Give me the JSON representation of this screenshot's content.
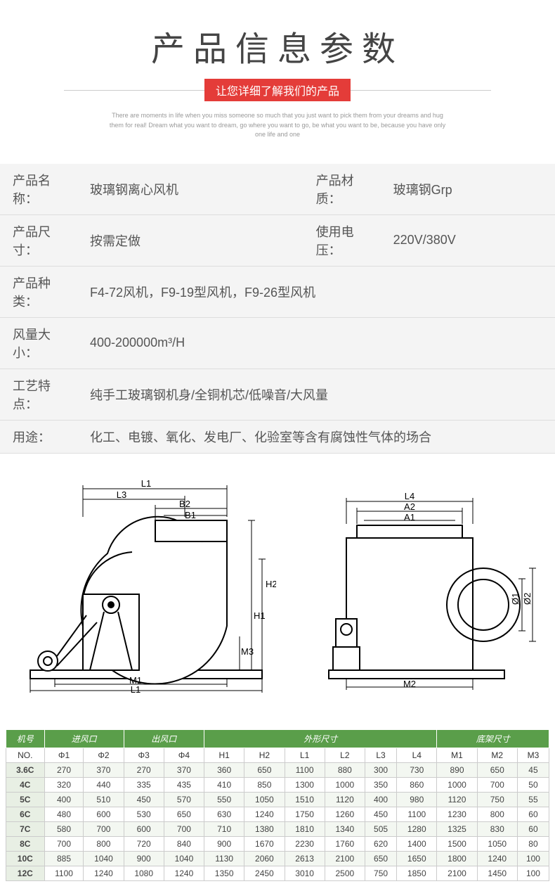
{
  "header": {
    "title": "产品信息参数",
    "subtitle": "让您详细了解我们的产品",
    "english1": "There are moments in life when you miss someone so much that you just want to pick them from your dreams and hug",
    "english2": "them for real! Dream what you want to dream, go where you want to go, be what you want to be, because you have only",
    "english3": "one life and one"
  },
  "info": {
    "rows": [
      {
        "cells": [
          {
            "label": "产品名称：",
            "value": "玻璃钢离心风机"
          },
          {
            "label": "产品材质：",
            "value": "玻璃钢Grp"
          }
        ]
      },
      {
        "cells": [
          {
            "label": "产品尺寸：",
            "value": "按需定做"
          },
          {
            "label": "使用电压：",
            "value": "220V/380V"
          }
        ]
      },
      {
        "cells": [
          {
            "label": "产品种类：",
            "value": "F4-72风机，F9-19型风机，F9-26型风机"
          }
        ]
      },
      {
        "cells": [
          {
            "label": "风量大小：",
            "value": "400-200000m³/H"
          }
        ]
      },
      {
        "cells": [
          {
            "label": "工艺特点：",
            "value": "纯手工玻璃钢机身/全铜机芯/低噪音/大风量"
          }
        ]
      },
      {
        "cells": [
          {
            "label": "用途：",
            "value": "化工、电镀、氧化、发电厂、化验室等含有腐蚀性气体的场合"
          }
        ]
      }
    ]
  },
  "diagram": {
    "stroke": "#000000",
    "fill": "#ffffff",
    "labels_left": [
      "L1",
      "L3",
      "B2",
      "B1",
      "H2",
      "H1",
      "M3",
      "M1",
      "L1"
    ],
    "labels_right": [
      "L4",
      "A2",
      "A1",
      "Ø1",
      "Ø2",
      "M2"
    ]
  },
  "spec": {
    "header_bg": "#5a9e4a",
    "group_headers": [
      "机号",
      "进风口",
      "出风口",
      "外形尺寸",
      "底架尺寸"
    ],
    "group_spans": [
      1,
      2,
      2,
      6,
      3
    ],
    "sub_headers": [
      "NO.",
      "Φ1",
      "Φ2",
      "Φ3",
      "Φ4",
      "H1",
      "H2",
      "L1",
      "L2",
      "L3",
      "L4",
      "M1",
      "M2",
      "M3"
    ],
    "rows": [
      [
        "3.6C",
        "270",
        "370",
        "270",
        "370",
        "360",
        "650",
        "1100",
        "880",
        "300",
        "730",
        "890",
        "650",
        "45"
      ],
      [
        "4C",
        "320",
        "440",
        "335",
        "435",
        "410",
        "850",
        "1300",
        "1000",
        "350",
        "860",
        "1000",
        "700",
        "50"
      ],
      [
        "5C",
        "400",
        "510",
        "450",
        "570",
        "550",
        "1050",
        "1510",
        "1120",
        "400",
        "980",
        "1120",
        "750",
        "55"
      ],
      [
        "6C",
        "480",
        "600",
        "530",
        "650",
        "630",
        "1240",
        "1750",
        "1260",
        "450",
        "1100",
        "1230",
        "800",
        "60"
      ],
      [
        "7C",
        "580",
        "700",
        "600",
        "700",
        "710",
        "1380",
        "1810",
        "1340",
        "505",
        "1280",
        "1325",
        "830",
        "60"
      ],
      [
        "8C",
        "700",
        "800",
        "720",
        "840",
        "900",
        "1670",
        "2230",
        "1760",
        "620",
        "1400",
        "1500",
        "1050",
        "80"
      ],
      [
        "10C",
        "885",
        "1040",
        "900",
        "1040",
        "1130",
        "2060",
        "2613",
        "2100",
        "650",
        "1650",
        "1800",
        "1240",
        "100"
      ],
      [
        "12C",
        "1100",
        "1240",
        "1080",
        "1240",
        "1350",
        "2450",
        "3010",
        "2500",
        "750",
        "1850",
        "2100",
        "1450",
        "100"
      ]
    ]
  }
}
